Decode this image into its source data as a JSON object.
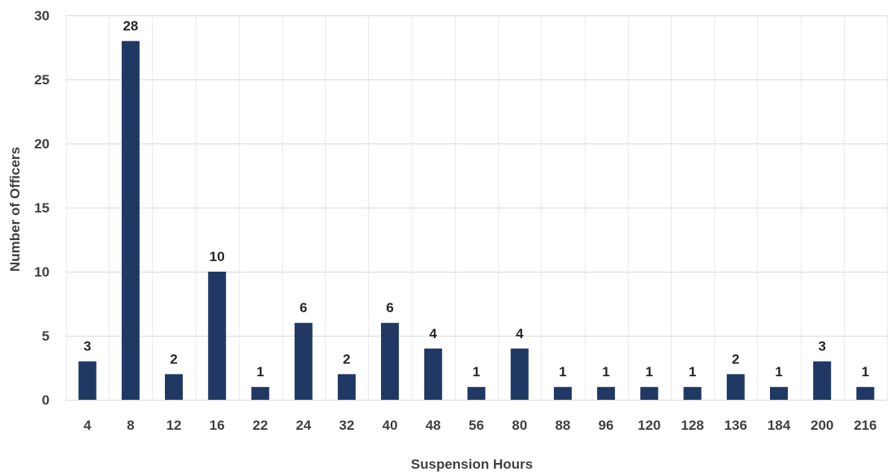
{
  "chart_data": {
    "type": "bar",
    "title": "",
    "xlabel": "Suspension Hours",
    "ylabel": "Number of Officers",
    "categories": [
      "4",
      "8",
      "12",
      "16",
      "22",
      "24",
      "32",
      "40",
      "48",
      "56",
      "80",
      "88",
      "96",
      "120",
      "128",
      "136",
      "184",
      "200",
      "216"
    ],
    "values": [
      3,
      28,
      2,
      10,
      1,
      6,
      2,
      6,
      4,
      1,
      4,
      1,
      1,
      1,
      1,
      2,
      1,
      3,
      1
    ],
    "ylim": [
      0,
      30
    ],
    "yticks": [
      "0",
      "5",
      "10",
      "15",
      "20",
      "25",
      "30"
    ],
    "grid": true,
    "legend": "none",
    "data_labels": true,
    "colors": {
      "bar": "#1f3864",
      "grid": "#d9d9d9",
      "text": "#404040"
    }
  }
}
